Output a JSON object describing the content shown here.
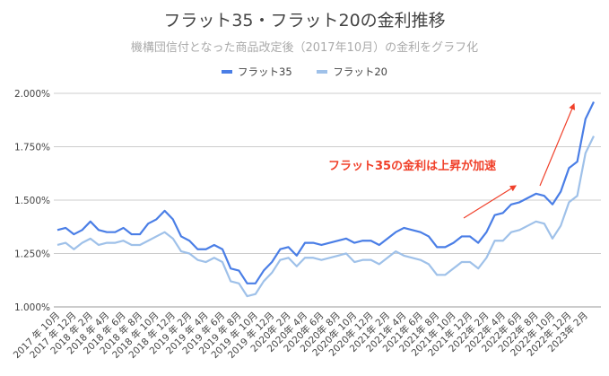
{
  "chart_data": {
    "type": "line",
    "title": "フラット35・フラット20の金利推移",
    "subtitle": "機構団信付となった商品改定後（2017年10月）の金利をグラフ化",
    "xlabel": "",
    "ylabel": "",
    "x_tick_labels": [
      "2017 年 10月",
      "2017 年 12月",
      "2018 年 2月",
      "2018 年 4月",
      "2018 年 6月",
      "2018 年 8月",
      "2018 年 10月",
      "2018 年 12月",
      "2019 年 2月",
      "2019 年 4月",
      "2019 年 6月",
      "2019 年 8月",
      "2019 年 10月",
      "2019 年 12月",
      "2020年 2月",
      "2020年 4月",
      "2020年 6月",
      "2020年 8月",
      "2020年 10月",
      "2020年 12月",
      "2021年 2月",
      "2021年 4月",
      "2021年 6月",
      "2021年 8月",
      "2021年 10月",
      "2021年 12月",
      "2022年 2月",
      "2022年 4月",
      "2022年 6月",
      "2022年 8月",
      "2022年 10月",
      "2022年 12月",
      "2023年 2月"
    ],
    "y_tick_labels": [
      "1.000%",
      "1.250%",
      "1.500%",
      "1.750%",
      "2.000%"
    ],
    "ylim": [
      1.0,
      2.0
    ],
    "grid": true,
    "legend": "top",
    "series": [
      {
        "name": "フラット35",
        "color": "#4a7ee6",
        "values": [
          1.36,
          1.37,
          1.34,
          1.36,
          1.4,
          1.36,
          1.35,
          1.35,
          1.37,
          1.34,
          1.34,
          1.39,
          1.41,
          1.45,
          1.41,
          1.33,
          1.31,
          1.27,
          1.27,
          1.29,
          1.27,
          1.18,
          1.17,
          1.11,
          1.11,
          1.17,
          1.21,
          1.27,
          1.28,
          1.24,
          1.3,
          1.3,
          1.29,
          1.3,
          1.31,
          1.32,
          1.3,
          1.31,
          1.31,
          1.29,
          1.32,
          1.35,
          1.37,
          1.36,
          1.35,
          1.33,
          1.28,
          1.28,
          1.3,
          1.33,
          1.33,
          1.3,
          1.35,
          1.43,
          1.44,
          1.48,
          1.49,
          1.51,
          1.53,
          1.52,
          1.48,
          1.54,
          1.65,
          1.68,
          1.88,
          1.96
        ]
      },
      {
        "name": "フラット20",
        "color": "#9fc1e9",
        "values": [
          1.29,
          1.3,
          1.27,
          1.3,
          1.32,
          1.29,
          1.3,
          1.3,
          1.31,
          1.29,
          1.29,
          1.31,
          1.33,
          1.35,
          1.32,
          1.26,
          1.25,
          1.22,
          1.21,
          1.23,
          1.21,
          1.12,
          1.11,
          1.05,
          1.06,
          1.12,
          1.16,
          1.22,
          1.23,
          1.19,
          1.23,
          1.23,
          1.22,
          1.23,
          1.24,
          1.25,
          1.21,
          1.22,
          1.22,
          1.2,
          1.23,
          1.26,
          1.24,
          1.23,
          1.22,
          1.2,
          1.15,
          1.15,
          1.18,
          1.21,
          1.21,
          1.18,
          1.23,
          1.31,
          1.31,
          1.35,
          1.36,
          1.38,
          1.4,
          1.39,
          1.32,
          1.38,
          1.49,
          1.52,
          1.72,
          1.8
        ]
      }
    ],
    "annotation": {
      "text": "フラット35の金利は上昇が加速",
      "color": "#f0402a"
    }
  }
}
